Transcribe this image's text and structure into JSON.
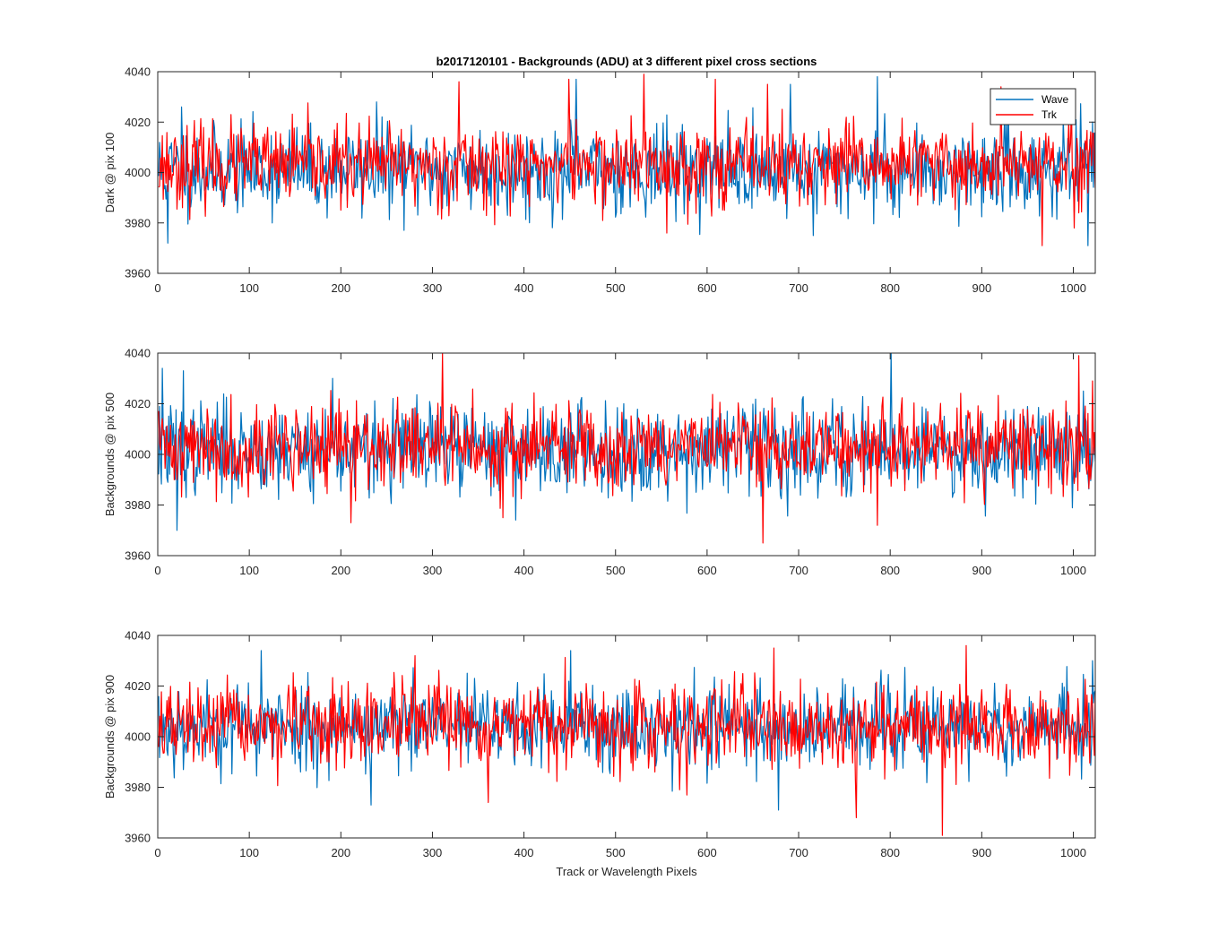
{
  "title": "b2017120101 - Backgrounds (ADU) at 3 different pixel cross sections",
  "xlabel": "Track or Wavelength Pixels",
  "legend": {
    "placement": "top-right",
    "entries": [
      "Wave",
      "Trk"
    ]
  },
  "colors": {
    "wave": "#0072BD",
    "trk": "#FF0000",
    "axis": "#262626"
  },
  "chart_data": [
    {
      "type": "line",
      "ylabel": "Dark @ pix 100",
      "xlim": [
        0,
        1024
      ],
      "ylim": [
        3960,
        4040
      ],
      "xticks": [
        0,
        100,
        200,
        300,
        400,
        500,
        600,
        700,
        800,
        900,
        1000
      ],
      "yticks": [
        3960,
        3980,
        4000,
        4020,
        4040
      ],
      "series": [
        {
          "name": "Wave",
          "mean": 4001,
          "std": 8.5,
          "seed": 11,
          "npoints": 1024,
          "spikes": [
            [
              10,
              3972
            ],
            [
              25,
              4026
            ],
            [
              238,
              4028
            ],
            [
              456,
              4037
            ],
            [
              690,
              4035
            ],
            [
              715,
              3975
            ],
            [
              785,
              4038
            ],
            [
              1015,
              3971
            ],
            [
              1020,
              4020
            ]
          ]
        },
        {
          "name": "Trk",
          "mean": 4003,
          "std": 8.0,
          "seed": 23,
          "npoints": 1024,
          "spikes": [
            [
              328,
              4036
            ],
            [
              448,
              4037
            ],
            [
              530,
              4039
            ],
            [
              555,
              3976
            ],
            [
              608,
              4037
            ],
            [
              665,
              4035
            ],
            [
              920,
              4034
            ],
            [
              965,
              3971
            ],
            [
              1000,
              3978
            ]
          ]
        }
      ]
    },
    {
      "type": "line",
      "ylabel": "Backgrounds @ pix 500",
      "xlim": [
        0,
        1024
      ],
      "ylim": [
        3960,
        4040
      ],
      "xticks": [
        0,
        100,
        200,
        300,
        400,
        500,
        600,
        700,
        800,
        900,
        1000
      ],
      "yticks": [
        3960,
        3980,
        4000,
        4020,
        4040
      ],
      "series": [
        {
          "name": "Wave",
          "mean": 4002,
          "std": 9.0,
          "seed": 37,
          "npoints": 1024,
          "spikes": [
            [
              4,
              4034
            ],
            [
              20,
              3970
            ],
            [
              27,
              4033
            ],
            [
              190,
              4030
            ],
            [
              800,
              4040
            ],
            [
              1010,
              4025
            ]
          ]
        },
        {
          "name": "Trk",
          "mean": 4003,
          "std": 8.5,
          "seed": 41,
          "npoints": 1024,
          "spikes": [
            [
              310,
              4040
            ],
            [
              210,
              3973
            ],
            [
              376,
              3975
            ],
            [
              660,
              3965
            ],
            [
              785,
              3972
            ],
            [
              1005,
              4039
            ],
            [
              1020,
              4029
            ]
          ]
        }
      ]
    },
    {
      "type": "line",
      "ylabel": "Backgrounds @ pix 900",
      "xlim": [
        0,
        1024
      ],
      "ylim": [
        3960,
        4040
      ],
      "xticks": [
        0,
        100,
        200,
        300,
        400,
        500,
        600,
        700,
        800,
        900,
        1000
      ],
      "yticks": [
        3960,
        3980,
        4000,
        4020,
        4040
      ],
      "series": [
        {
          "name": "Wave",
          "mean": 4004,
          "std": 8.5,
          "seed": 53,
          "npoints": 1024,
          "spikes": [
            [
              112,
              4034
            ],
            [
              232,
              3973
            ],
            [
              450,
              4034
            ],
            [
              677,
              3971
            ],
            [
              1020,
              4030
            ]
          ]
        },
        {
          "name": "Trk",
          "mean": 4004,
          "std": 8.0,
          "seed": 67,
          "npoints": 1024,
          "spikes": [
            [
              280,
              4032
            ],
            [
              360,
              3974
            ],
            [
              672,
              4035
            ],
            [
              856,
              3961
            ],
            [
              882,
              4036
            ],
            [
              762,
              3968
            ]
          ]
        }
      ]
    }
  ]
}
